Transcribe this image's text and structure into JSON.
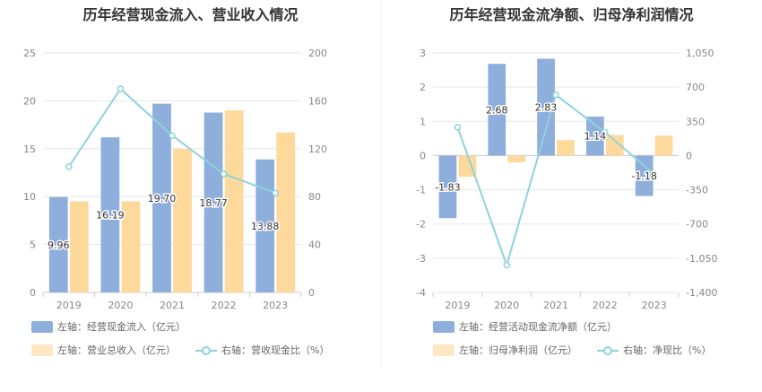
{
  "colors": {
    "blue": "#8eaedc",
    "orange": "#fed99c",
    "line": "#8fd3da"
  },
  "left": {
    "title": "历年经营现金流入、营业收入情况",
    "legend": {
      "item1": "左轴：经营现金流入（亿元）",
      "item2": "左轴：营业总收入（亿元）",
      "item3": "右轴：营收现金比（%）"
    }
  },
  "right": {
    "title": "历年经营现金流净额、归母净利润情况",
    "legend": {
      "item1": "左轴：经营活动现金流净额（亿元）",
      "item2": "左轴：归母净利润（亿元）",
      "item3": "右轴：净现比（%）"
    }
  },
  "chart_data": [
    {
      "type": "bar",
      "title": "历年经营现金流入、营业收入情况",
      "categories": [
        "2019",
        "2020",
        "2021",
        "2022",
        "2023"
      ],
      "y_left_ticks": [
        "0",
        "5",
        "10",
        "15",
        "20",
        "25"
      ],
      "y_right_ticks": [
        "0",
        "40",
        "80",
        "120",
        "160",
        "200"
      ],
      "ylim_left": [
        0,
        25
      ],
      "ylim_right": [
        0,
        200
      ],
      "series": [
        {
          "name": "经营现金流入",
          "axis": "left",
          "type": "bar",
          "values": [
            9.96,
            16.19,
            19.7,
            18.77,
            13.88
          ],
          "labels": [
            "9.96",
            "16.19",
            "19.70",
            "18.77",
            "13.88"
          ]
        },
        {
          "name": "营业总收入",
          "axis": "left",
          "type": "bar",
          "values": [
            9.5,
            9.5,
            15.0,
            19.0,
            16.7
          ]
        },
        {
          "name": "营收现金比",
          "axis": "right",
          "type": "line",
          "values": [
            105,
            170,
            131,
            99,
            83
          ]
        }
      ]
    },
    {
      "type": "bar",
      "title": "历年经营现金流净额、归母净利润情况",
      "categories": [
        "2019",
        "2020",
        "2021",
        "2022",
        "2023"
      ],
      "y_left_ticks": [
        "3",
        "2",
        "1",
        "0",
        "-1",
        "-2",
        "-3",
        "-4"
      ],
      "y_right_ticks": [
        "1,050",
        "700",
        "350",
        "0",
        "-350",
        "-700",
        "-1,050",
        "-1,400"
      ],
      "ylim_left": [
        -4,
        3
      ],
      "ylim_right": [
        -1400,
        1050
      ],
      "series": [
        {
          "name": "经营活动现金流净额",
          "axis": "left",
          "type": "bar",
          "values": [
            -1.83,
            2.68,
            2.83,
            1.14,
            -1.18
          ],
          "labels": [
            "-1.83",
            "2.68",
            "2.83",
            "1.14",
            "-1.18"
          ]
        },
        {
          "name": "归母净利润",
          "axis": "left",
          "type": "bar",
          "values": [
            -0.62,
            -0.2,
            0.45,
            0.6,
            0.58
          ]
        },
        {
          "name": "净现比",
          "axis": "right",
          "type": "line",
          "values": [
            290,
            -1120,
            620,
            240,
            -190
          ]
        }
      ]
    }
  ]
}
